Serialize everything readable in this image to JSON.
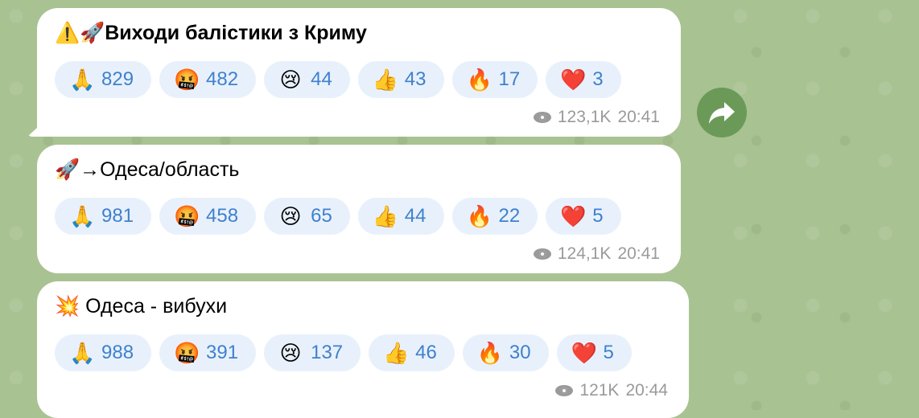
{
  "colors": {
    "background": "#a9c292",
    "bubble": "#ffffff",
    "reaction_pill": "#e8f1fb",
    "reaction_count": "#3f80cf",
    "meta": "#9a9a9a",
    "forward_button": "#6b9a58"
  },
  "messages": [
    {
      "title": "⚠️🚀Виходи балістики з Криму",
      "reactions": [
        {
          "emoji": "🙏",
          "count": "829"
        },
        {
          "emoji": "🤬",
          "count": "482"
        },
        {
          "emoji": "😢",
          "count": "44"
        },
        {
          "emoji": "👍",
          "count": "43"
        },
        {
          "emoji": "🔥",
          "count": "17"
        },
        {
          "emoji": "❤️",
          "count": "3"
        }
      ],
      "views": "123,1K",
      "time": "20:41"
    },
    {
      "title": "🚀→Одеса/область",
      "reactions": [
        {
          "emoji": "🙏",
          "count": "981"
        },
        {
          "emoji": "🤬",
          "count": "458"
        },
        {
          "emoji": "😢",
          "count": "65"
        },
        {
          "emoji": "👍",
          "count": "44"
        },
        {
          "emoji": "🔥",
          "count": "22"
        },
        {
          "emoji": "❤️",
          "count": "5"
        }
      ],
      "views": "124,1K",
      "time": "20:41"
    },
    {
      "title": "💥 Одеса - вибухи",
      "reactions": [
        {
          "emoji": "🙏",
          "count": "988"
        },
        {
          "emoji": "🤬",
          "count": "391"
        },
        {
          "emoji": "😢",
          "count": "137"
        },
        {
          "emoji": "👍",
          "count": "46"
        },
        {
          "emoji": "🔥",
          "count": "30"
        },
        {
          "emoji": "❤️",
          "count": "5"
        }
      ],
      "views": "121K",
      "time": "20:44"
    }
  ],
  "icons": {
    "views": "eye-icon",
    "forward": "forward-arrow-icon"
  }
}
